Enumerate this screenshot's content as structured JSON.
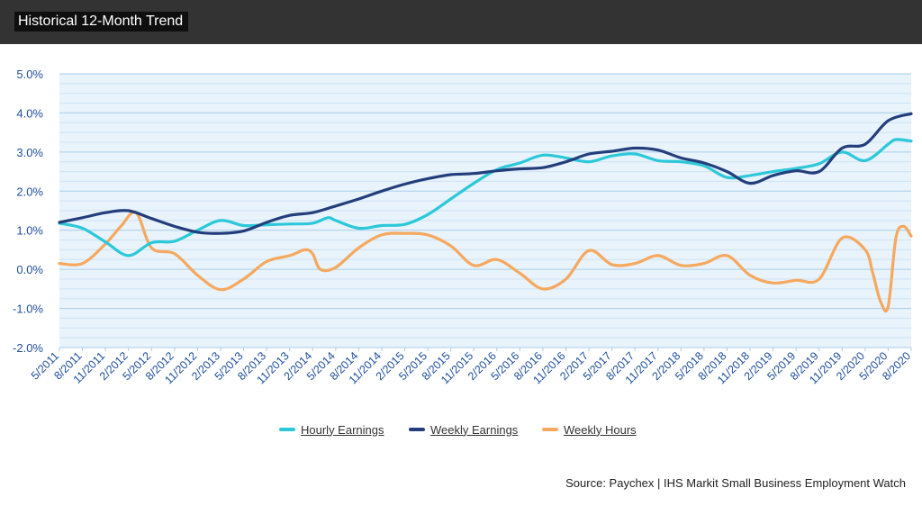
{
  "header": {
    "title": "Historical 12-Month Trend"
  },
  "source": "Source: Paychex | IHS Markit Small Business Employment Watch",
  "colors": {
    "header_bg": "#333333",
    "plot_bg": "#e8f3fb",
    "gridline": "#b7d6ec",
    "axis_text": "#1f4e9a",
    "hourly": "#2cc8d9",
    "weekly_earnings": "#243e7c",
    "weekly_hours": "#f5a85e"
  },
  "chart_data": {
    "type": "line",
    "title": "Historical 12-Month Trend",
    "ylim": [
      -2.0,
      5.0
    ],
    "y_ticks": [
      "5.0%",
      "4.0%",
      "3.0%",
      "2.0%",
      "1.0%",
      "0.0%",
      "-1.0%",
      "-2.0%"
    ],
    "x_tick_labels": [
      "5/2011",
      "8/2011",
      "11/2011",
      "2/2012",
      "5/2012",
      "8/2012",
      "11/2012",
      "2/2013",
      "5/2013",
      "8/2013",
      "11/2013",
      "2/2014",
      "5/2014",
      "8/2014",
      "11/2014",
      "2/2015",
      "5/2015",
      "8/2015",
      "11/2015",
      "2/2016",
      "5/2016",
      "8/2016",
      "11/2016",
      "2/2017",
      "5/2017",
      "8/2017",
      "11/2017",
      "2/2018",
      "5/2018",
      "8/2018",
      "11/2018",
      "2/2019",
      "5/2019",
      "8/2019",
      "11/2019",
      "2/2020",
      "5/2020",
      "8/2020"
    ],
    "x_range": [
      "5/2011",
      "8/2020"
    ],
    "grid": true,
    "legend_position": "bottom-center",
    "series": [
      {
        "name": "Hourly Earnings",
        "color": "#2cc8d9",
        "points": [
          [
            "5/2011",
            1.18
          ],
          [
            "8/2011",
            1.05
          ],
          [
            "11/2011",
            0.7
          ],
          [
            "2/2012",
            0.35
          ],
          [
            "5/2012",
            0.68
          ],
          [
            "8/2012",
            0.72
          ],
          [
            "11/2012",
            1.0
          ],
          [
            "2/2013",
            1.25
          ],
          [
            "5/2013",
            1.12
          ],
          [
            "8/2013",
            1.14
          ],
          [
            "11/2013",
            1.16
          ],
          [
            "2/2014",
            1.18
          ],
          [
            "4/2014",
            1.32
          ],
          [
            "5/2014",
            1.25
          ],
          [
            "8/2014",
            1.05
          ],
          [
            "11/2014",
            1.12
          ],
          [
            "2/2015",
            1.15
          ],
          [
            "5/2015",
            1.4
          ],
          [
            "8/2015",
            1.8
          ],
          [
            "11/2015",
            2.2
          ],
          [
            "2/2016",
            2.55
          ],
          [
            "5/2016",
            2.72
          ],
          [
            "8/2016",
            2.92
          ],
          [
            "11/2016",
            2.85
          ],
          [
            "2/2017",
            2.75
          ],
          [
            "5/2017",
            2.9
          ],
          [
            "8/2017",
            2.95
          ],
          [
            "11/2017",
            2.78
          ],
          [
            "2/2018",
            2.75
          ],
          [
            "5/2018",
            2.65
          ],
          [
            "8/2018",
            2.35
          ],
          [
            "11/2018",
            2.4
          ],
          [
            "2/2019",
            2.5
          ],
          [
            "5/2019",
            2.58
          ],
          [
            "8/2019",
            2.7
          ],
          [
            "11/2019",
            3.0
          ],
          [
            "2/2020",
            2.78
          ],
          [
            "5/2020",
            3.2
          ],
          [
            "6/2020",
            3.32
          ],
          [
            "8/2020",
            3.28
          ]
        ]
      },
      {
        "name": "Weekly Earnings",
        "color": "#243e7c",
        "points": [
          [
            "5/2011",
            1.2
          ],
          [
            "8/2011",
            1.32
          ],
          [
            "11/2011",
            1.45
          ],
          [
            "2/2012",
            1.5
          ],
          [
            "5/2012",
            1.3
          ],
          [
            "8/2012",
            1.1
          ],
          [
            "11/2012",
            0.95
          ],
          [
            "2/2013",
            0.92
          ],
          [
            "5/2013",
            0.98
          ],
          [
            "8/2013",
            1.2
          ],
          [
            "11/2013",
            1.38
          ],
          [
            "2/2014",
            1.45
          ],
          [
            "5/2014",
            1.62
          ],
          [
            "8/2014",
            1.8
          ],
          [
            "11/2014",
            2.0
          ],
          [
            "2/2015",
            2.18
          ],
          [
            "5/2015",
            2.32
          ],
          [
            "8/2015",
            2.42
          ],
          [
            "11/2015",
            2.45
          ],
          [
            "2/2016",
            2.52
          ],
          [
            "5/2016",
            2.57
          ],
          [
            "8/2016",
            2.6
          ],
          [
            "11/2016",
            2.75
          ],
          [
            "2/2017",
            2.95
          ],
          [
            "5/2017",
            3.02
          ],
          [
            "8/2017",
            3.1
          ],
          [
            "11/2017",
            3.05
          ],
          [
            "2/2018",
            2.85
          ],
          [
            "5/2018",
            2.72
          ],
          [
            "8/2018",
            2.5
          ],
          [
            "11/2018",
            2.2
          ],
          [
            "2/2019",
            2.4
          ],
          [
            "5/2019",
            2.52
          ],
          [
            "8/2019",
            2.5
          ],
          [
            "11/2019",
            3.1
          ],
          [
            "2/2020",
            3.2
          ],
          [
            "5/2020",
            3.8
          ],
          [
            "8/2020",
            3.98
          ]
        ]
      },
      {
        "name": "Weekly Hours",
        "color": "#f5a85e",
        "points": [
          [
            "5/2011",
            0.15
          ],
          [
            "8/2011",
            0.15
          ],
          [
            "11/2011",
            0.65
          ],
          [
            "1/2012",
            1.1
          ],
          [
            "3/2012",
            1.45
          ],
          [
            "5/2012",
            0.55
          ],
          [
            "8/2012",
            0.4
          ],
          [
            "11/2012",
            -0.15
          ],
          [
            "2/2013",
            -0.52
          ],
          [
            "5/2013",
            -0.25
          ],
          [
            "8/2013",
            0.2
          ],
          [
            "11/2013",
            0.35
          ],
          [
            "1/2014",
            0.5
          ],
          [
            "2/2014",
            0.4
          ],
          [
            "3/2014",
            0.0
          ],
          [
            "5/2014",
            0.05
          ],
          [
            "8/2014",
            0.55
          ],
          [
            "11/2014",
            0.88
          ],
          [
            "2/2015",
            0.92
          ],
          [
            "5/2015",
            0.88
          ],
          [
            "8/2015",
            0.6
          ],
          [
            "11/2015",
            0.1
          ],
          [
            "2/2016",
            0.25
          ],
          [
            "5/2016",
            -0.1
          ],
          [
            "8/2016",
            -0.5
          ],
          [
            "11/2016",
            -0.25
          ],
          [
            "2/2017",
            0.48
          ],
          [
            "5/2017",
            0.12
          ],
          [
            "8/2017",
            0.15
          ],
          [
            "11/2017",
            0.35
          ],
          [
            "2/2018",
            0.1
          ],
          [
            "5/2018",
            0.15
          ],
          [
            "8/2018",
            0.35
          ],
          [
            "11/2018",
            -0.15
          ],
          [
            "2/2019",
            -0.35
          ],
          [
            "5/2019",
            -0.28
          ],
          [
            "8/2019",
            -0.25
          ],
          [
            "11/2019",
            0.8
          ],
          [
            "2/2020",
            0.5
          ],
          [
            "3/2020",
            -0.1
          ],
          [
            "4/2020",
            -0.82
          ],
          [
            "5/2020",
            -0.95
          ],
          [
            "6/2020",
            0.8
          ],
          [
            "7/2020",
            1.1
          ],
          [
            "8/2020",
            0.85
          ]
        ]
      }
    ]
  }
}
